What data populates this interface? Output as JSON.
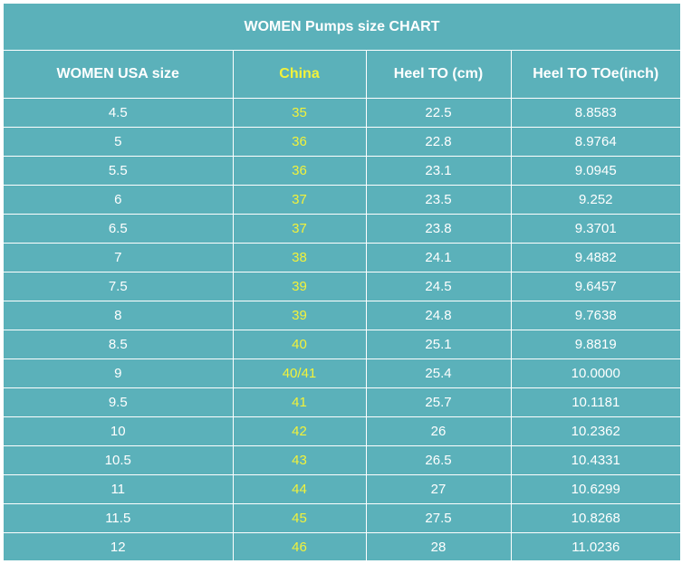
{
  "title": "WOMEN Pumps size CHART",
  "headers": [
    "WOMEN USA size",
    "China",
    "Heel TO (cm)",
    "Heel TO TOe(inch)"
  ],
  "rows": [
    [
      "4.5",
      "35",
      "22.5",
      "8.8583"
    ],
    [
      "5",
      "36",
      "22.8",
      "8.9764"
    ],
    [
      "5.5",
      "36",
      "23.1",
      "9.0945"
    ],
    [
      "6",
      "37",
      "23.5",
      "9.252"
    ],
    [
      "6.5",
      "37",
      "23.8",
      "9.3701"
    ],
    [
      "7",
      "38",
      "24.1",
      "9.4882"
    ],
    [
      "7.5",
      "39",
      "24.5",
      "9.6457"
    ],
    [
      "8",
      "39",
      "24.8",
      "9.7638"
    ],
    [
      "8.5",
      "40",
      "25.1",
      "9.8819"
    ],
    [
      "9",
      "40/41",
      "25.4",
      "10.0000"
    ],
    [
      "9.5",
      "41",
      "25.7",
      "10.1181"
    ],
    [
      "10",
      "42",
      "26",
      "10.2362"
    ],
    [
      "10.5",
      "43",
      "26.5",
      "10.4331"
    ],
    [
      "11",
      "44",
      "27",
      "10.6299"
    ],
    [
      "11.5",
      "45",
      "27.5",
      "10.8268"
    ],
    [
      "12",
      "46",
      "28",
      "11.0236"
    ]
  ],
  "colors": {
    "background": "#5bb1ba",
    "text": "#ffffff",
    "china_highlight": "#f2f23a",
    "grid": "#ffffff"
  }
}
